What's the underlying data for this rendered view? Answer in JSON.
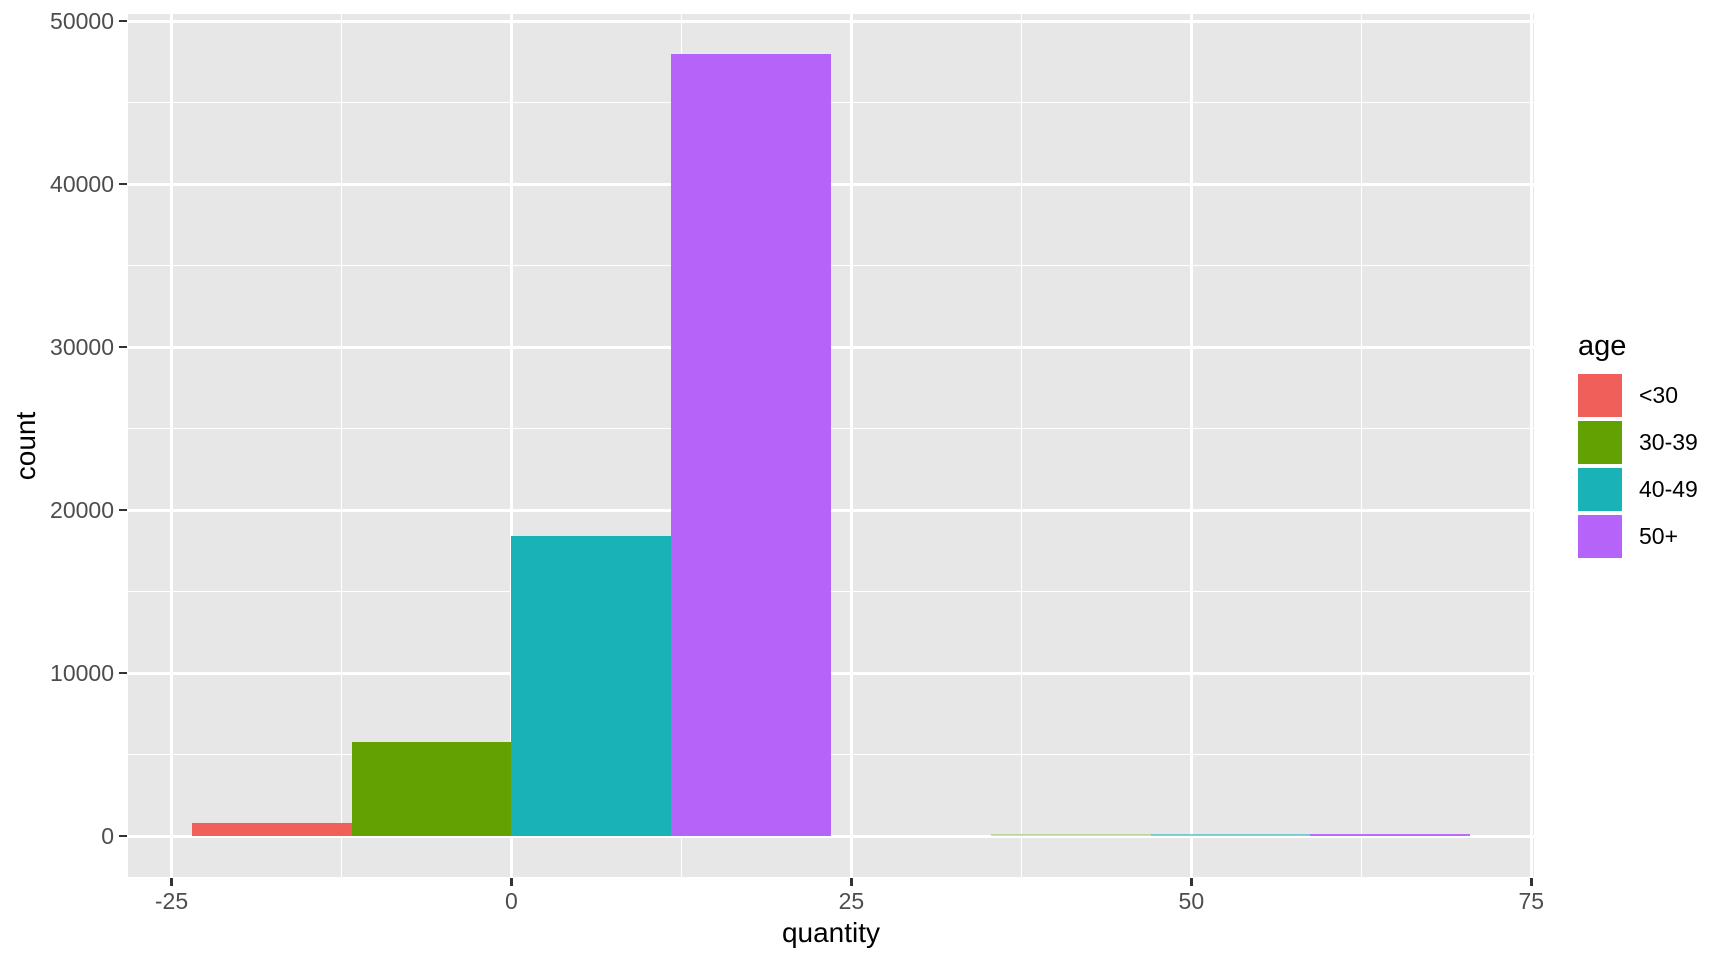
{
  "figure": {
    "x_axis": {
      "title": "quantity"
    },
    "y_axis": {
      "title": "count"
    },
    "legend": {
      "title": "age",
      "items": [
        {
          "label": "<30",
          "color": "#F15F5B"
        },
        {
          "label": "30-39",
          "color": "#63A103"
        },
        {
          "label": "40-49",
          "color": "#19B2B6"
        },
        {
          "label": "50+",
          "color": "#B563F9"
        }
      ]
    }
  },
  "chart_data": {
    "type": "bar",
    "title": "",
    "xlabel": "quantity",
    "ylabel": "count",
    "xlim": [
      -28.2,
      75.2
    ],
    "ylim": [
      -2500,
      50430
    ],
    "x_ticks": [
      {
        "value": -25,
        "label": "-25"
      },
      {
        "value": 0,
        "label": "0"
      },
      {
        "value": 25,
        "label": "25"
      },
      {
        "value": 50,
        "label": "50"
      },
      {
        "value": 75,
        "label": "75"
      }
    ],
    "y_ticks": [
      {
        "value": 0,
        "label": "0"
      },
      {
        "value": 10000,
        "label": "10000"
      },
      {
        "value": 20000,
        "label": "20000"
      },
      {
        "value": 30000,
        "label": "30000"
      },
      {
        "value": 40000,
        "label": "40000"
      },
      {
        "value": 50000,
        "label": "50000"
      }
    ],
    "grid": {
      "major": true,
      "minor": true,
      "color": "#FFFFFF"
    },
    "legend_position": "right",
    "panel_background": "#E7E7E7",
    "tick_text_color": "#4D4D4D",
    "title_text_color": "#000000",
    "series": [
      {
        "name": "<30",
        "color": "#F15F5B",
        "bars": [
          {
            "x0": -23.5,
            "x1": -11.75,
            "count": 800
          }
        ]
      },
      {
        "name": "30-39",
        "color": "#63A103",
        "bars": [
          {
            "x0": -11.75,
            "x1": 0,
            "count": 5800
          },
          {
            "x0": 35.25,
            "x1": 47,
            "count": 50
          }
        ]
      },
      {
        "name": "40-49",
        "color": "#19B2B6",
        "bars": [
          {
            "x0": 0,
            "x1": 11.75,
            "count": 18400
          },
          {
            "x0": 47,
            "x1": 58.75,
            "count": 90
          }
        ]
      },
      {
        "name": "50+",
        "color": "#B563F9",
        "bars": [
          {
            "x0": 11.75,
            "x1": 23.5,
            "count": 48000
          },
          {
            "x0": 58.75,
            "x1": 70.5,
            "count": 150
          }
        ]
      }
    ]
  }
}
